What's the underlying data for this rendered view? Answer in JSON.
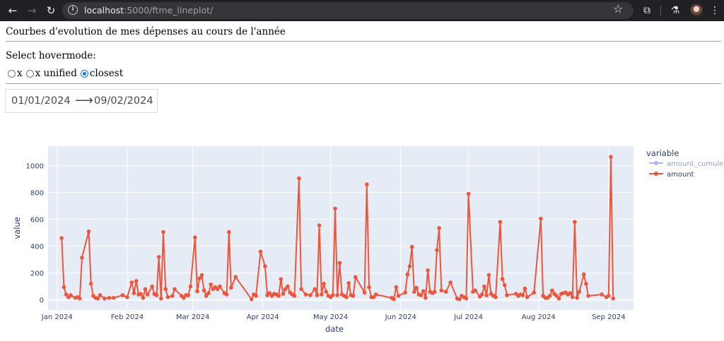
{
  "browser": {
    "url_host": "localhost",
    "url_path": ":5000/ftme_lineplot/"
  },
  "page": {
    "title": "Courbes d'evolution de mes dépenses au cours de l'année",
    "hovermode_label": "Select hovermode:",
    "hovermode_options": [
      "x",
      "x unified",
      "closest"
    ],
    "hovermode_selected": "closest",
    "date_start": "01/01/2024",
    "date_end": "09/02/2024",
    "date_arrow": "⟶"
  },
  "colors": {
    "plot_bg": "#e5ecf6",
    "amount": "#ef553b",
    "amount_cumule": "#636efa"
  },
  "chart_data": {
    "type": "line",
    "xlabel": "date",
    "ylabel": "value",
    "legend_title": "variable",
    "legend_position": "right",
    "grid": true,
    "x_tick_labels": [
      "Jan 2024",
      "Feb 2024",
      "Mar 2024",
      "Apr 2024",
      "May 2024",
      "Jun 2024",
      "Jul 2024",
      "Aug 2024",
      "Sep 2024"
    ],
    "y_ticks": [
      0,
      200,
      400,
      600,
      800,
      1000
    ],
    "xlim": [
      "2023-12-28",
      "2024-09-12"
    ],
    "ylim": [
      -75,
      1145
    ],
    "series": [
      {
        "name": "amount_cumule",
        "visible": "legendonly",
        "points": []
      },
      {
        "name": "amount",
        "points": [
          [
            "2024-01-03",
            460
          ],
          [
            "2024-01-04",
            95
          ],
          [
            "2024-01-05",
            40
          ],
          [
            "2024-01-06",
            20
          ],
          [
            "2024-01-07",
            35
          ],
          [
            "2024-01-09",
            15
          ],
          [
            "2024-01-10",
            20
          ],
          [
            "2024-01-11",
            10
          ],
          [
            "2024-01-12",
            315
          ],
          [
            "2024-01-15",
            510
          ],
          [
            "2024-01-16",
            120
          ],
          [
            "2024-01-17",
            30
          ],
          [
            "2024-01-18",
            15
          ],
          [
            "2024-01-19",
            10
          ],
          [
            "2024-01-20",
            35
          ],
          [
            "2024-01-22",
            10
          ],
          [
            "2024-01-24",
            15
          ],
          [
            "2024-01-26",
            15
          ],
          [
            "2024-01-30",
            35
          ],
          [
            "2024-02-01",
            20
          ],
          [
            "2024-02-03",
            130
          ],
          [
            "2024-02-04",
            50
          ],
          [
            "2024-02-05",
            140
          ],
          [
            "2024-02-06",
            40
          ],
          [
            "2024-02-07",
            45
          ],
          [
            "2024-02-08",
            15
          ],
          [
            "2024-02-09",
            80
          ],
          [
            "2024-02-10",
            40
          ],
          [
            "2024-02-12",
            100
          ],
          [
            "2024-02-13",
            45
          ],
          [
            "2024-02-14",
            35
          ],
          [
            "2024-02-15",
            320
          ],
          [
            "2024-02-16",
            10
          ],
          [
            "2024-02-17",
            505
          ],
          [
            "2024-02-18",
            80
          ],
          [
            "2024-02-19",
            20
          ],
          [
            "2024-02-21",
            30
          ],
          [
            "2024-02-22",
            80
          ],
          [
            "2024-02-25",
            30
          ],
          [
            "2024-02-26",
            15
          ],
          [
            "2024-02-27",
            35
          ],
          [
            "2024-02-28",
            35
          ],
          [
            "2024-02-29",
            100
          ],
          [
            "2024-03-02",
            465
          ],
          [
            "2024-03-03",
            65
          ],
          [
            "2024-03-04",
            160
          ],
          [
            "2024-03-05",
            185
          ],
          [
            "2024-03-06",
            70
          ],
          [
            "2024-03-07",
            30
          ],
          [
            "2024-03-08",
            50
          ],
          [
            "2024-03-09",
            115
          ],
          [
            "2024-03-10",
            80
          ],
          [
            "2024-03-11",
            95
          ],
          [
            "2024-03-12",
            80
          ],
          [
            "2024-03-13",
            100
          ],
          [
            "2024-03-15",
            50
          ],
          [
            "2024-03-16",
            40
          ],
          [
            "2024-03-17",
            505
          ],
          [
            "2024-03-18",
            90
          ],
          [
            "2024-03-20",
            170
          ],
          [
            "2024-03-27",
            5
          ],
          [
            "2024-03-28",
            40
          ],
          [
            "2024-03-29",
            30
          ],
          [
            "2024-03-31",
            360
          ],
          [
            "2024-04-02",
            250
          ],
          [
            "2024-04-03",
            35
          ],
          [
            "2024-04-04",
            50
          ],
          [
            "2024-04-05",
            30
          ],
          [
            "2024-04-06",
            45
          ],
          [
            "2024-04-07",
            40
          ],
          [
            "2024-04-08",
            30
          ],
          [
            "2024-04-09",
            155
          ],
          [
            "2024-04-10",
            45
          ],
          [
            "2024-04-11",
            80
          ],
          [
            "2024-04-12",
            100
          ],
          [
            "2024-04-13",
            55
          ],
          [
            "2024-04-14",
            40
          ],
          [
            "2024-04-15",
            30
          ],
          [
            "2024-04-17",
            905
          ],
          [
            "2024-04-18",
            80
          ],
          [
            "2024-04-20",
            40
          ],
          [
            "2024-04-22",
            35
          ],
          [
            "2024-04-24",
            80
          ],
          [
            "2024-04-25",
            35
          ],
          [
            "2024-04-26",
            555
          ],
          [
            "2024-04-27",
            40
          ],
          [
            "2024-04-28",
            120
          ],
          [
            "2024-04-29",
            60
          ],
          [
            "2024-04-30",
            30
          ],
          [
            "2024-05-01",
            20
          ],
          [
            "2024-05-02",
            35
          ],
          [
            "2024-05-03",
            680
          ],
          [
            "2024-05-04",
            35
          ],
          [
            "2024-05-05",
            275
          ],
          [
            "2024-05-06",
            40
          ],
          [
            "2024-05-07",
            30
          ],
          [
            "2024-05-08",
            20
          ],
          [
            "2024-05-09",
            125
          ],
          [
            "2024-05-10",
            35
          ],
          [
            "2024-05-11",
            30
          ],
          [
            "2024-05-12",
            170
          ],
          [
            "2024-05-16",
            55
          ],
          [
            "2024-05-17",
            860
          ],
          [
            "2024-05-18",
            95
          ],
          [
            "2024-05-19",
            20
          ],
          [
            "2024-05-20",
            20
          ],
          [
            "2024-05-21",
            40
          ],
          [
            "2024-05-28",
            15
          ],
          [
            "2024-05-29",
            5
          ],
          [
            "2024-05-30",
            95
          ],
          [
            "2024-05-31",
            30
          ],
          [
            "2024-06-03",
            55
          ],
          [
            "2024-06-04",
            190
          ],
          [
            "2024-06-05",
            250
          ],
          [
            "2024-06-06",
            395
          ],
          [
            "2024-06-07",
            60
          ],
          [
            "2024-06-08",
            90
          ],
          [
            "2024-06-09",
            40
          ],
          [
            "2024-06-10",
            35
          ],
          [
            "2024-06-11",
            65
          ],
          [
            "2024-06-12",
            15
          ],
          [
            "2024-06-13",
            220
          ],
          [
            "2024-06-14",
            60
          ],
          [
            "2024-06-15",
            50
          ],
          [
            "2024-06-16",
            60
          ],
          [
            "2024-06-17",
            370
          ],
          [
            "2024-06-18",
            535
          ],
          [
            "2024-06-19",
            70
          ],
          [
            "2024-06-21",
            60
          ],
          [
            "2024-06-23",
            130
          ],
          [
            "2024-06-26",
            10
          ],
          [
            "2024-06-27",
            5
          ],
          [
            "2024-06-28",
            30
          ],
          [
            "2024-06-29",
            20
          ],
          [
            "2024-06-30",
            10
          ],
          [
            "2024-07-01",
            790
          ],
          [
            "2024-07-03",
            60
          ],
          [
            "2024-07-04",
            70
          ],
          [
            "2024-07-06",
            25
          ],
          [
            "2024-07-07",
            40
          ],
          [
            "2024-07-08",
            100
          ],
          [
            "2024-07-09",
            35
          ],
          [
            "2024-07-10",
            185
          ],
          [
            "2024-07-11",
            45
          ],
          [
            "2024-07-12",
            30
          ],
          [
            "2024-07-13",
            20
          ],
          [
            "2024-07-15",
            580
          ],
          [
            "2024-07-16",
            155
          ],
          [
            "2024-07-17",
            110
          ],
          [
            "2024-07-18",
            35
          ],
          [
            "2024-07-22",
            45
          ],
          [
            "2024-07-23",
            30
          ],
          [
            "2024-07-24",
            40
          ],
          [
            "2024-07-25",
            35
          ],
          [
            "2024-07-26",
            85
          ],
          [
            "2024-07-27",
            20
          ],
          [
            "2024-07-30",
            55
          ],
          [
            "2024-08-02",
            605
          ],
          [
            "2024-08-03",
            30
          ],
          [
            "2024-08-04",
            15
          ],
          [
            "2024-08-05",
            15
          ],
          [
            "2024-08-06",
            30
          ],
          [
            "2024-08-07",
            70
          ],
          [
            "2024-08-08",
            45
          ],
          [
            "2024-08-09",
            30
          ],
          [
            "2024-08-10",
            10
          ],
          [
            "2024-08-11",
            45
          ],
          [
            "2024-08-12",
            50
          ],
          [
            "2024-08-13",
            55
          ],
          [
            "2024-08-14",
            40
          ],
          [
            "2024-08-15",
            50
          ],
          [
            "2024-08-16",
            20
          ],
          [
            "2024-08-17",
            580
          ],
          [
            "2024-08-18",
            15
          ],
          [
            "2024-08-19",
            60
          ],
          [
            "2024-08-21",
            190
          ],
          [
            "2024-08-22",
            120
          ],
          [
            "2024-08-23",
            30
          ],
          [
            "2024-08-29",
            40
          ],
          [
            "2024-08-31",
            20
          ],
          [
            "2024-09-01",
            30
          ],
          [
            "2024-09-02",
            1065
          ],
          [
            "2024-09-03",
            10
          ]
        ]
      }
    ]
  }
}
